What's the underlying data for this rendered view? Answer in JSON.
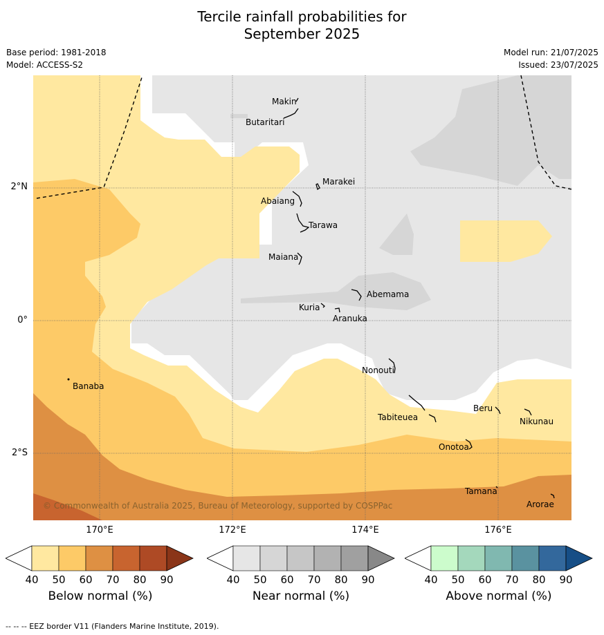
{
  "header": {
    "title_line1": "Tercile rainfall probabilities for",
    "title_line2": "September 2025",
    "base_period": "Base period: 1981-2018",
    "model": "Model: ACCESS-S2",
    "model_run": "Model run: 21/07/2025",
    "issued": "Issued: 23/07/2025"
  },
  "map": {
    "lon_labels": [
      "170°E",
      "172°E",
      "174°E",
      "176°E"
    ],
    "lat_labels": [
      "2°N",
      "0°",
      "2°S"
    ],
    "places": [
      {
        "name": "Makin"
      },
      {
        "name": "Butaritari"
      },
      {
        "name": "Marakei"
      },
      {
        "name": "Abaiang"
      },
      {
        "name": "Tarawa"
      },
      {
        "name": "Maiana"
      },
      {
        "name": "Abemama"
      },
      {
        "name": "Kuria"
      },
      {
        "name": "Aranuka"
      },
      {
        "name": "Banaba"
      },
      {
        "name": "Nonouti"
      },
      {
        "name": "Beru"
      },
      {
        "name": "Nikunau"
      },
      {
        "name": "Tabiteuea"
      },
      {
        "name": "Onotoa"
      },
      {
        "name": "Tamana"
      },
      {
        "name": "Arorae"
      }
    ],
    "copyright": "© Commonwealth of Australia 2025, Bureau of Meteorology, supported by COSPPac",
    "colors": {
      "ocean_near_normal": "#e6e6e6",
      "near_50": "#d6d6d6",
      "below_40": "#ffe8a0",
      "below_50": "#fdca67",
      "below_60": "#de9043",
      "below_70": "#c8642f"
    }
  },
  "colorbars": [
    {
      "label": "Below normal (%)",
      "ticks": [
        "40",
        "50",
        "60",
        "70",
        "80",
        "90"
      ],
      "colors": [
        "#ffe8a0",
        "#fdca67",
        "#de9043",
        "#c8642f",
        "#ae4a25",
        "#8a3518"
      ]
    },
    {
      "label": "Near normal (%)",
      "ticks": [
        "40",
        "50",
        "60",
        "70",
        "80",
        "90"
      ],
      "colors": [
        "#e6e6e6",
        "#d6d6d6",
        "#c6c6c6",
        "#b2b2b2",
        "#a0a0a0",
        "#888888"
      ]
    },
    {
      "label": "Above normal (%)",
      "ticks": [
        "40",
        "50",
        "60",
        "70",
        "80",
        "90"
      ],
      "colors": [
        "#ccfccc",
        "#a4d8bc",
        "#80b8b0",
        "#5a92a0",
        "#33689c",
        "#164e86"
      ]
    }
  ],
  "footnote": "--  --  -- EEZ border V11 (Flanders Marine Institute, 2019)."
}
